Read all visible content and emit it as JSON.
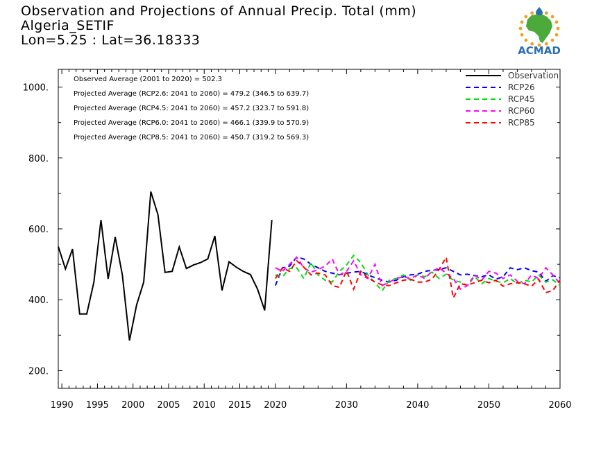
{
  "header": {
    "line1": "Observation and Projections of Annual Precip. Total (mm)",
    "line2": "Algeria_SETIF",
    "line3": "Lon=5.25 : Lat=36.18333"
  },
  "logo": {
    "text": "ACMAD",
    "icon": "africa-map-sun-icon",
    "color": "#2a6fb0",
    "accent": "#f0a020",
    "land": "#4caa3a"
  },
  "chart_data": {
    "type": "line",
    "title": "Observation and Projections of Annual Precip. Total (mm)",
    "xlabel": "",
    "ylabel": "",
    "xlim": [
      1989.5,
      2060
    ],
    "ylim": [
      150,
      1050
    ],
    "yticks": [
      200,
      400,
      600,
      800,
      1000
    ],
    "ytick_labels": [
      "200.",
      "400.",
      "600.",
      "800.",
      "1000."
    ],
    "xticks": [
      1990,
      1995,
      2000,
      2005,
      2010,
      2015,
      2020,
      2030,
      2040,
      2050,
      2060
    ],
    "xtick_labels": [
      "1990",
      "1995",
      "2000",
      "2005",
      "2010",
      "2015",
      "2020",
      "2030",
      "2040",
      "2050",
      "2060"
    ],
    "grid": false,
    "legend_position": "top-right",
    "annotations": [
      "Observed Average (2001 to 2020) = 502.3",
      "Projected Average (RCP2.6: 2041 to 2060) = 479.2 (346.5 to 639.7)",
      "Projected Average (RCP4.5: 2041 to 2060) = 457.2 (323.7 to 591.8)",
      "Projected Average (RCP6.0: 2041 to 2060) = 466.1 (339.9 to 570.9)",
      "Projected Average (RCP8.5: 2041 to 2060) = 450.7 (319.2 to 569.3)"
    ],
    "series": [
      {
        "name": "Observation",
        "color": "#000000",
        "dash": "solid",
        "x": [
          1989.5,
          1990.5,
          1991.5,
          1992.5,
          1993.5,
          1994.5,
          1995.5,
          1996.5,
          1997.5,
          1998.5,
          1999.5,
          2000.5,
          2001.5,
          2002.5,
          2003.5,
          2004.5,
          2005.5,
          2006.5,
          2007.5,
          2008.5,
          2009.5,
          2010.5,
          2011.5,
          2012.5,
          2013.5,
          2014.5,
          2015.5,
          2016.5,
          2017.5,
          2018.5,
          2019.5
        ],
        "values": [
          550,
          487,
          543,
          360,
          360,
          450,
          625,
          459,
          577,
          470,
          285,
          385,
          450,
          705,
          640,
          477,
          480,
          549,
          488,
          498,
          505,
          515,
          580,
          426,
          507,
          492,
          480,
          471,
          430,
          370,
          625
        ]
      },
      {
        "name": "RCP26",
        "color": "#0000ff",
        "dash": "dashed",
        "x": [
          2020,
          2021,
          2022,
          2023,
          2024,
          2025,
          2026,
          2027,
          2028,
          2029,
          2030,
          2031,
          2032,
          2033,
          2034,
          2035,
          2036,
          2037,
          2038,
          2039,
          2040,
          2041,
          2042,
          2043,
          2044,
          2045,
          2046,
          2047,
          2048,
          2049,
          2050,
          2051,
          2052,
          2053,
          2054,
          2055,
          2056,
          2057,
          2058,
          2059,
          2060
        ],
        "values": [
          440,
          490,
          495,
          520,
          515,
          500,
          490,
          480,
          475,
          470,
          475,
          478,
          480,
          470,
          462,
          455,
          450,
          455,
          465,
          470,
          472,
          480,
          483,
          485,
          490,
          480,
          470,
          472,
          468,
          465,
          470,
          458,
          465,
          490,
          485,
          490,
          482,
          478,
          452,
          468,
          462
        ]
      },
      {
        "name": "RCP45",
        "color": "#00dd00",
        "dash": "dashed",
        "x": [
          2020,
          2021,
          2022,
          2023,
          2024,
          2025,
          2026,
          2027,
          2028,
          2029,
          2030,
          2031,
          2032,
          2033,
          2034,
          2035,
          2036,
          2037,
          2038,
          2039,
          2040,
          2041,
          2042,
          2043,
          2044,
          2045,
          2046,
          2047,
          2048,
          2049,
          2050,
          2051,
          2052,
          2053,
          2054,
          2055,
          2056,
          2057,
          2058,
          2059,
          2060
        ],
        "values": [
          470,
          465,
          488,
          490,
          460,
          505,
          470,
          455,
          450,
          480,
          498,
          525,
          505,
          470,
          448,
          425,
          455,
          460,
          470,
          455,
          470,
          465,
          478,
          460,
          472,
          455,
          450,
          440,
          465,
          445,
          460,
          452,
          448,
          460,
          445,
          455,
          450,
          470,
          450,
          456,
          440
        ]
      },
      {
        "name": "RCP60",
        "color": "#ff00ff",
        "dash": "dashed",
        "x": [
          2020,
          2021,
          2022,
          2023,
          2024,
          2025,
          2026,
          2027,
          2028,
          2029,
          2030,
          2031,
          2032,
          2033,
          2034,
          2035,
          2036,
          2037,
          2038,
          2039,
          2040,
          2041,
          2042,
          2043,
          2044,
          2045,
          2046,
          2047,
          2048,
          2049,
          2050,
          2051,
          2052,
          2053,
          2054,
          2055,
          2056,
          2057,
          2058,
          2059,
          2060
        ],
        "values": [
          490,
          480,
          500,
          520,
          490,
          478,
          485,
          495,
          515,
          470,
          480,
          510,
          470,
          460,
          500,
          440,
          450,
          460,
          465,
          460,
          470,
          460,
          480,
          490,
          475,
          460,
          430,
          440,
          470,
          455,
          480,
          475,
          460,
          470,
          452,
          445,
          470,
          460,
          490,
          470,
          445
        ]
      },
      {
        "name": "RCP85",
        "color": "#ff0000",
        "dash": "dashed",
        "x": [
          2020,
          2021,
          2022,
          2023,
          2024,
          2025,
          2026,
          2027,
          2028,
          2029,
          2030,
          2031,
          2032,
          2033,
          2034,
          2035,
          2036,
          2037,
          2038,
          2039,
          2040,
          2041,
          2042,
          2043,
          2044,
          2045,
          2046,
          2047,
          2048,
          2049,
          2050,
          2051,
          2052,
          2053,
          2054,
          2055,
          2056,
          2057,
          2058,
          2059,
          2060
        ],
        "values": [
          460,
          490,
          480,
          510,
          492,
          470,
          475,
          470,
          440,
          435,
          482,
          430,
          480,
          462,
          450,
          442,
          440,
          448,
          455,
          458,
          450,
          450,
          458,
          485,
          520,
          405,
          445,
          442,
          448,
          455,
          448,
          455,
          438,
          445,
          448,
          445,
          438,
          458,
          420,
          426,
          455
        ]
      }
    ]
  }
}
